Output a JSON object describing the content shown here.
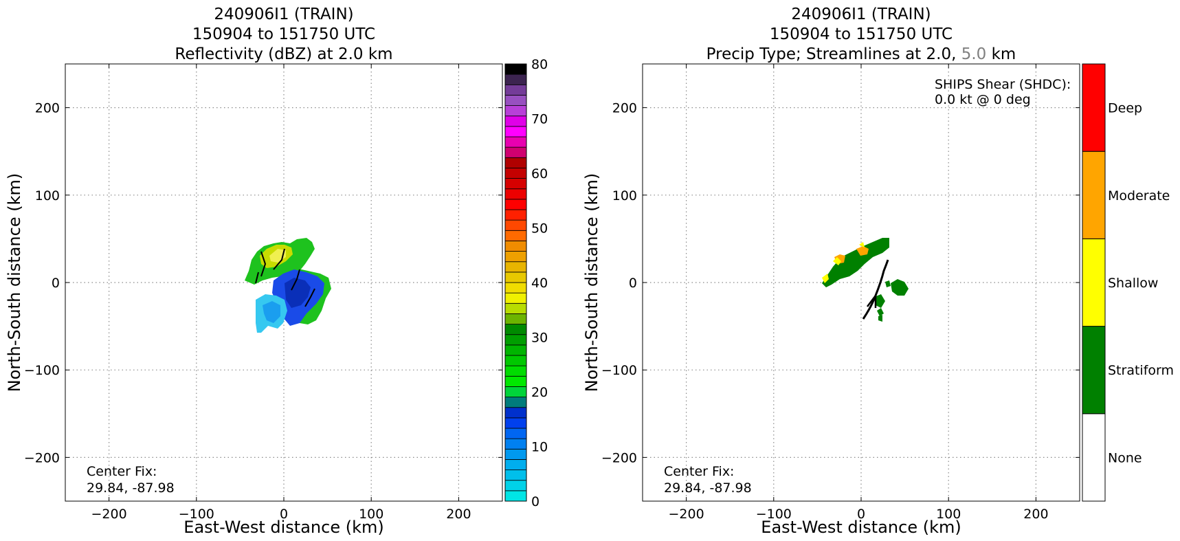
{
  "chart_data": [
    {
      "type": "heatmap",
      "title_lines": [
        "240906I1 (TRAIN)",
        "150904 to 151750 UTC",
        "Reflectivity (dBZ) at 2.0 km"
      ],
      "xlabel": "East-West distance (km)",
      "ylabel": "North-South distance (km)",
      "xlim": [
        -250,
        250
      ],
      "ylim": [
        -250,
        250
      ],
      "xticks": [
        -200,
        -100,
        0,
        100,
        200
      ],
      "yticks": [
        -200,
        -100,
        0,
        100,
        200
      ],
      "grid": true,
      "annotation_lines": [
        "Center Fix:",
        "29.84, -87.98"
      ],
      "colorbar": {
        "label_values": [
          0,
          10,
          20,
          30,
          40,
          50,
          60,
          70,
          80
        ],
        "range": [
          0,
          80
        ],
        "colors": [
          "#00e5e5",
          "#00d2e8",
          "#00bfeb",
          "#00aeee",
          "#0099ef",
          "#0080f0",
          "#0066f2",
          "#0040ee",
          "#0030cc",
          "#007c7c",
          "#00d43a",
          "#00e800",
          "#00dc00",
          "#00c800",
          "#00b400",
          "#009e00",
          "#008a00",
          "#6cb400",
          "#b8dc00",
          "#f0f000",
          "#f0dc00",
          "#e8c800",
          "#e8b400",
          "#eea000",
          "#f08c00",
          "#ff6a00",
          "#ff4800",
          "#ff2000",
          "#ff0000",
          "#ec0000",
          "#d60000",
          "#c40000",
          "#b00000",
          "#d00070",
          "#e800b0",
          "#ff00ff",
          "#e000e8",
          "#b840d8",
          "#9850c0",
          "#743c98",
          "#3c2450",
          "#000000"
        ]
      }
    },
    {
      "type": "heatmap",
      "title_lines": [
        "240906I1 (TRAIN)",
        "150904 to 151750 UTC"
      ],
      "title_line3_prefix": "Precip Type; Streamlines at 2.0,",
      "title_line3_gray": "5.0",
      "title_line3_suffix": "km",
      "xlabel": "East-West distance (km)",
      "ylabel": "North-South distance (km)",
      "xlim": [
        -250,
        250
      ],
      "ylim": [
        -250,
        250
      ],
      "xticks": [
        -200,
        -100,
        0,
        100,
        200
      ],
      "yticks": [
        -200,
        -100,
        0,
        100,
        200
      ],
      "grid": true,
      "annotation_lines": [
        "Center Fix:",
        "29.84, -87.98"
      ],
      "shear_lines": [
        "SHIPS Shear (SHDC):",
        "0.0 kt @ 0 deg"
      ],
      "colorbar": {
        "categories": [
          "None",
          "Stratiform",
          "Shallow",
          "Moderate",
          "Deep"
        ],
        "colors": [
          "#ffffff",
          "#008000",
          "#ffff00",
          "#ffa500",
          "#ff0000"
        ]
      }
    }
  ],
  "colors": {
    "grid": "#888888",
    "gray_text": "#808080"
  }
}
